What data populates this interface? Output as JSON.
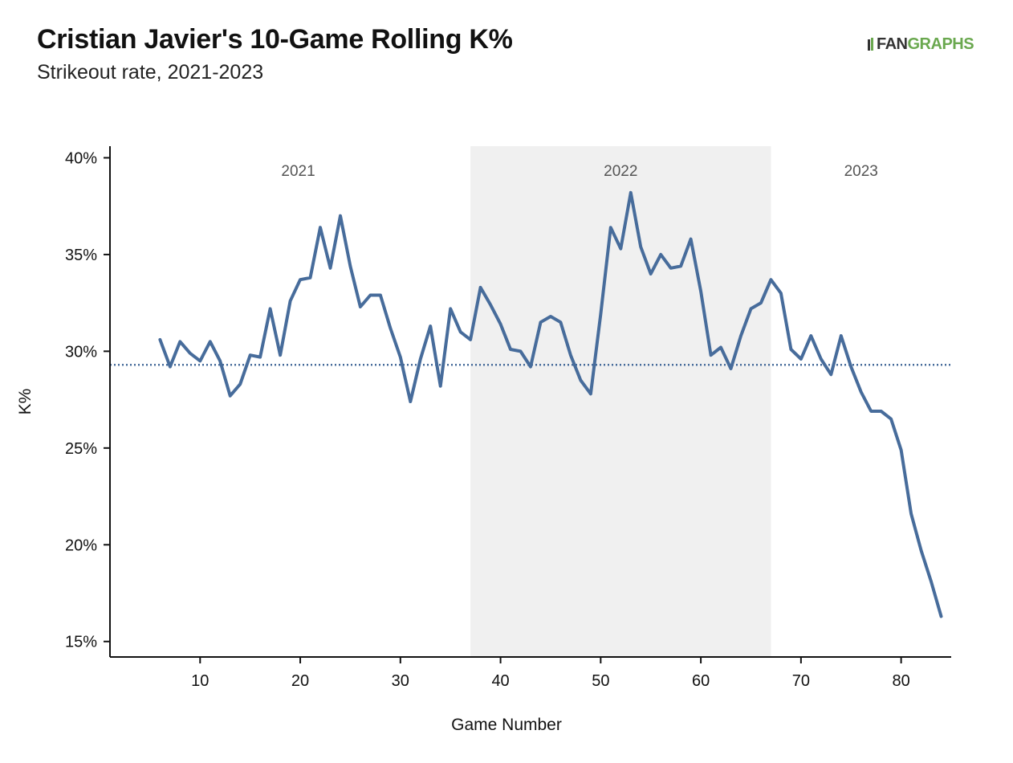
{
  "header": {
    "title": "Cristian Javier's 10-Game Rolling K%",
    "subtitle": "Strikeout rate, 2021-2023"
  },
  "logo": {
    "fan": "FAN",
    "graphs": "GRAPHS"
  },
  "colors": {
    "line": "#476c9b",
    "shade": "#f0f0f0",
    "avg": "#476c9b",
    "logo_green": "#6aa84f"
  },
  "chart_data": {
    "type": "line",
    "title": "Cristian Javier's 10-Game Rolling K%",
    "subtitle": "Strikeout rate, 2021-2023",
    "xlabel": "Game Number",
    "ylabel": "K%",
    "xlim": [
      1,
      85
    ],
    "ylim": [
      14.2,
      40.6
    ],
    "x_ticks": [
      10,
      20,
      30,
      40,
      50,
      60,
      70,
      80
    ],
    "y_ticks": [
      15,
      20,
      25,
      30,
      35,
      40
    ],
    "y_tick_labels": [
      "15%",
      "20%",
      "25%",
      "30%",
      "35%",
      "40%"
    ],
    "grid": false,
    "average_line": 29.3,
    "seasons": [
      {
        "label": "2021",
        "start": 1,
        "end": 37,
        "shaded": false
      },
      {
        "label": "2022",
        "start": 37,
        "end": 67,
        "shaded": true
      },
      {
        "label": "2023",
        "start": 67,
        "end": 85,
        "shaded": false
      }
    ],
    "x": [
      6,
      7,
      8,
      9,
      10,
      11,
      12,
      13,
      14,
      15,
      16,
      17,
      18,
      19,
      20,
      21,
      22,
      23,
      24,
      25,
      26,
      27,
      28,
      29,
      30,
      31,
      32,
      33,
      34,
      35,
      36,
      37,
      38,
      39,
      40,
      41,
      42,
      43,
      44,
      45,
      46,
      47,
      48,
      49,
      50,
      51,
      52,
      53,
      54,
      55,
      56,
      57,
      58,
      59,
      60,
      61,
      62,
      63,
      64,
      65,
      66,
      67,
      68,
      69,
      70,
      71,
      72,
      73,
      74,
      75,
      76,
      77,
      78,
      79,
      80,
      81,
      82,
      83,
      84
    ],
    "values": [
      30.6,
      29.2,
      30.5,
      29.9,
      29.5,
      30.5,
      29.5,
      27.7,
      28.3,
      29.8,
      29.7,
      32.2,
      29.8,
      32.6,
      33.7,
      33.8,
      36.4,
      34.3,
      37.0,
      34.4,
      32.3,
      32.9,
      32.9,
      31.2,
      29.7,
      27.4,
      29.6,
      31.3,
      28.2,
      32.2,
      31.0,
      30.6,
      33.3,
      32.4,
      31.4,
      30.1,
      30.0,
      29.2,
      31.5,
      31.8,
      31.5,
      29.8,
      28.5,
      27.8,
      31.9,
      36.4,
      35.3,
      38.2,
      35.4,
      34.0,
      35.0,
      34.3,
      34.4,
      35.8,
      33.1,
      29.8,
      30.2,
      29.1,
      30.8,
      32.2,
      32.5,
      33.7,
      33.0,
      30.1,
      29.6,
      30.8,
      29.6,
      28.8,
      30.8,
      29.2,
      27.9,
      26.9,
      26.9,
      26.5,
      24.9,
      21.6,
      19.7,
      18.1,
      16.3
    ]
  }
}
